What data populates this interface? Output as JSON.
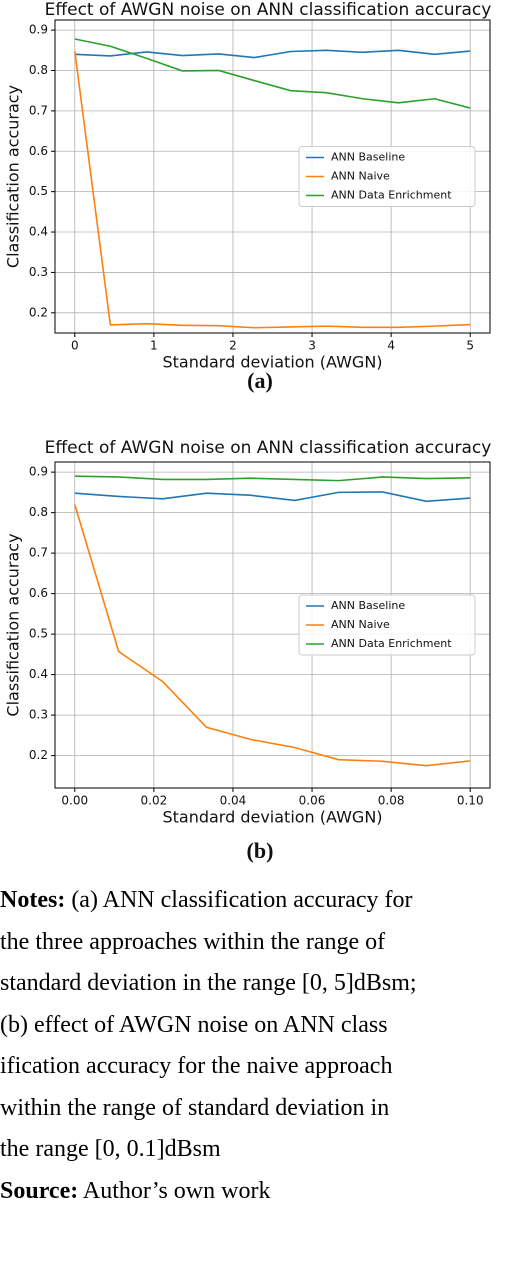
{
  "chart_data": [
    {
      "type": "line",
      "title": "Effect of AWGN noise on ANN classification accuracy",
      "x_label": "Standard deviation (AWGN)",
      "y_label": "Classification accuracy",
      "x": [
        0,
        0.45,
        0.91,
        1.36,
        1.82,
        2.27,
        2.73,
        3.18,
        3.64,
        4.09,
        4.55,
        5
      ],
      "series": [
        {
          "name": "ANN Baseline",
          "color": "#1f77b4",
          "values": [
            0.84,
            0.836,
            0.846,
            0.837,
            0.841,
            0.832,
            0.847,
            0.85,
            0.845,
            0.85,
            0.84,
            0.848
          ]
        },
        {
          "name": "ANN Naive",
          "color": "#ff7f0e",
          "values": [
            0.848,
            0.17,
            0.173,
            0.169,
            0.168,
            0.163,
            0.165,
            0.167,
            0.164,
            0.164,
            0.167,
            0.171
          ]
        },
        {
          "name": "ANN Data Enrichment",
          "color": "#2ca02c",
          "values": [
            0.878,
            0.86,
            0.83,
            0.799,
            0.8,
            0.775,
            0.75,
            0.745,
            0.73,
            0.72,
            0.73,
            0.707
          ]
        }
      ],
      "xlim": [
        -0.25,
        5.25
      ],
      "xticks": [
        0,
        1,
        2,
        3,
        4,
        5
      ],
      "ylim": [
        0.15,
        0.925
      ],
      "yticks": [
        0.2,
        0.3,
        0.4,
        0.5,
        0.6,
        0.7,
        0.8,
        0.9
      ],
      "grid": true,
      "legend": "center right"
    },
    {
      "type": "line",
      "title": "Effect of AWGN noise on ANN classification accuracy",
      "x_label": "Standard deviation (AWGN)",
      "y_label": "Classification accuracy",
      "x": [
        0,
        0.0111,
        0.0222,
        0.0333,
        0.0444,
        0.0556,
        0.0667,
        0.0778,
        0.0889,
        0.1
      ],
      "series": [
        {
          "name": "ANN Baseline",
          "color": "#1f77b4",
          "values": [
            0.848,
            0.84,
            0.834,
            0.848,
            0.843,
            0.83,
            0.85,
            0.851,
            0.828,
            0.836
          ]
        },
        {
          "name": "ANN Naive",
          "color": "#ff7f0e",
          "values": [
            0.82,
            0.457,
            0.383,
            0.27,
            0.24,
            0.22,
            0.19,
            0.186,
            0.175,
            0.187
          ]
        },
        {
          "name": "ANN Data Enrichment",
          "color": "#2ca02c",
          "values": [
            0.89,
            0.888,
            0.882,
            0.882,
            0.885,
            0.882,
            0.879,
            0.888,
            0.884,
            0.886
          ]
        }
      ],
      "xlim": [
        -0.005,
        0.105
      ],
      "xticks": [
        {
          "value": 0,
          "label": "0.00"
        },
        {
          "value": 0.02,
          "label": "0.02"
        },
        {
          "value": 0.04,
          "label": "0.04"
        },
        {
          "value": 0.06,
          "label": "0.06"
        },
        {
          "value": 0.08,
          "label": "0.08"
        },
        {
          "value": 0.1,
          "label": "0.10"
        }
      ],
      "ylim": [
        0.12,
        0.925
      ],
      "yticks": [
        0.2,
        0.3,
        0.4,
        0.5,
        0.6,
        0.7,
        0.8,
        0.9
      ],
      "grid": true,
      "legend": "center right"
    }
  ],
  "captions": [
    "(a)",
    "(b)"
  ],
  "notes": {
    "label": "Notes:",
    "lines": [
      " (a) ANN classification accuracy for",
      "the three approaches within the range of",
      "standard deviation in the range [0, 5]dBsm;",
      "(b) effect of AWGN noise on ANN class",
      "ification accuracy for the naive approach",
      "within the range of standard deviation in",
      "the range [0, 0.1]dBsm"
    ]
  },
  "source": {
    "label": "Source:",
    "text": " Author’s own work"
  }
}
